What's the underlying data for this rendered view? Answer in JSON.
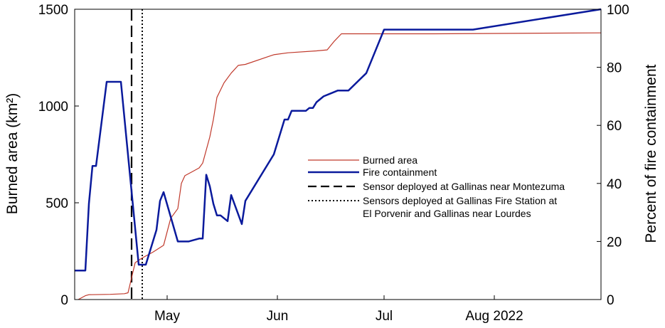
{
  "chart_data": {
    "type": "line",
    "title": "",
    "xlabel": "",
    "ylabel_left": "Burned area (km²)",
    "ylabel_right": "Percent of fire containment",
    "x_range": [
      "2022-04-05",
      "2022-08-31"
    ],
    "x_ticks": [
      {
        "date": "2022-05-01",
        "label": "May"
      },
      {
        "date": "2022-06-01",
        "label": "Jun"
      },
      {
        "date": "2022-07-01",
        "label": "Jul"
      },
      {
        "date": "2022-08-01",
        "label": "Aug  2022"
      }
    ],
    "ylim_left": [
      0,
      1500
    ],
    "yticks_left": [
      0,
      500,
      1000,
      1500
    ],
    "ylim_right": [
      0,
      100
    ],
    "yticks_right": [
      0,
      20,
      40,
      60,
      80,
      100
    ],
    "grid": false,
    "legend_position": "center-right",
    "series": [
      {
        "name": "Burned area",
        "axis": "left",
        "color": "#c0392b",
        "points": [
          [
            "2022-04-06",
            0
          ],
          [
            "2022-04-08",
            20
          ],
          [
            "2022-04-09",
            25
          ],
          [
            "2022-04-15",
            27
          ],
          [
            "2022-04-19",
            30
          ],
          [
            "2022-04-20",
            35
          ],
          [
            "2022-04-22",
            190
          ],
          [
            "2022-04-24",
            215
          ],
          [
            "2022-04-27",
            245
          ],
          [
            "2022-04-30",
            280
          ],
          [
            "2022-05-02",
            420
          ],
          [
            "2022-05-04",
            470
          ],
          [
            "2022-05-05",
            600
          ],
          [
            "2022-05-06",
            640
          ],
          [
            "2022-05-08",
            660
          ],
          [
            "2022-05-10",
            680
          ],
          [
            "2022-05-11",
            705
          ],
          [
            "2022-05-13",
            840
          ],
          [
            "2022-05-14",
            930
          ],
          [
            "2022-05-15",
            1045
          ],
          [
            "2022-05-17",
            1120
          ],
          [
            "2022-05-19",
            1170
          ],
          [
            "2022-05-21",
            1210
          ],
          [
            "2022-05-23",
            1215
          ],
          [
            "2022-05-31",
            1265
          ],
          [
            "2022-06-04",
            1275
          ],
          [
            "2022-06-12",
            1285
          ],
          [
            "2022-06-15",
            1290
          ],
          [
            "2022-06-17",
            1335
          ],
          [
            "2022-06-19",
            1373
          ],
          [
            "2022-06-25",
            1373
          ],
          [
            "2022-07-15",
            1373
          ],
          [
            "2022-08-31",
            1378
          ]
        ]
      },
      {
        "name": "Fire containment",
        "axis": "right",
        "color": "#0a1a9c",
        "points": [
          [
            "2022-04-05",
            10
          ],
          [
            "2022-04-08",
            10
          ],
          [
            "2022-04-09",
            33
          ],
          [
            "2022-04-10",
            46
          ],
          [
            "2022-04-11",
            46
          ],
          [
            "2022-04-14",
            75
          ],
          [
            "2022-04-17",
            75
          ],
          [
            "2022-04-18",
            75
          ],
          [
            "2022-04-23",
            12
          ],
          [
            "2022-04-25",
            12
          ],
          [
            "2022-04-28",
            24
          ],
          [
            "2022-04-29",
            34
          ],
          [
            "2022-04-30",
            37
          ],
          [
            "2022-05-04",
            20
          ],
          [
            "2022-05-07",
            20
          ],
          [
            "2022-05-10",
            21
          ],
          [
            "2022-05-11",
            21
          ],
          [
            "2022-05-12",
            43
          ],
          [
            "2022-05-13",
            39
          ],
          [
            "2022-05-14",
            33
          ],
          [
            "2022-05-15",
            29
          ],
          [
            "2022-05-16",
            29
          ],
          [
            "2022-05-18",
            27
          ],
          [
            "2022-05-19",
            36
          ],
          [
            "2022-05-22",
            26
          ],
          [
            "2022-05-23",
            34
          ],
          [
            "2022-05-31",
            50
          ],
          [
            "2022-06-03",
            62
          ],
          [
            "2022-06-04",
            62
          ],
          [
            "2022-06-05",
            65
          ],
          [
            "2022-06-09",
            65
          ],
          [
            "2022-06-10",
            66
          ],
          [
            "2022-06-11",
            66
          ],
          [
            "2022-06-12",
            68
          ],
          [
            "2022-06-14",
            70
          ],
          [
            "2022-06-16",
            71
          ],
          [
            "2022-06-18",
            72
          ],
          [
            "2022-06-21",
            72
          ],
          [
            "2022-06-26",
            78
          ],
          [
            "2022-07-01",
            93
          ],
          [
            "2022-07-20",
            93
          ],
          [
            "2022-07-26",
            93
          ],
          [
            "2022-08-31",
            100
          ]
        ]
      }
    ],
    "vertical_markers": [
      {
        "date": "2022-04-21",
        "style": "dashed",
        "label": "Sensor deployed at Gallinas near Montezuma"
      },
      {
        "date": "2022-04-24",
        "style": "dotted",
        "label": "Sensors deployed at Gallinas Fire Station at El Porvenir and Gallinas near Lourdes"
      }
    ],
    "legend": [
      {
        "label": "Burned area",
        "style": "solid-thin",
        "color": "#c0392b"
      },
      {
        "label": "Fire containment",
        "style": "solid-thick",
        "color": "#0a1a9c"
      },
      {
        "label": "Sensor deployed at Gallinas near Montezuma",
        "style": "dashed",
        "color": "#000000"
      },
      {
        "label": "Sensors deployed at Gallinas Fire Station at",
        "label2": "El Porvenir and Gallinas near Lourdes",
        "style": "dotted",
        "color": "#000000"
      }
    ]
  }
}
